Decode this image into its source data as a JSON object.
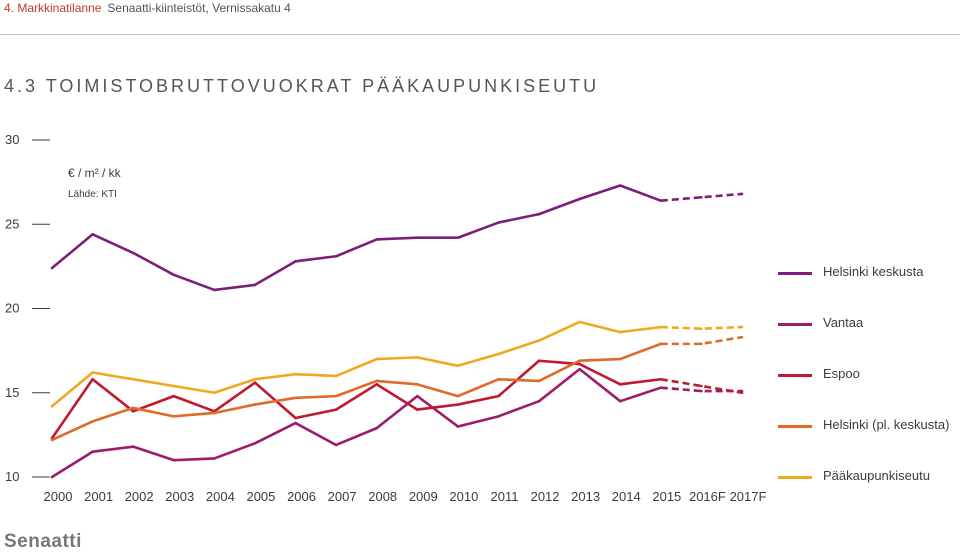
{
  "header": {
    "section": "4. Markkinatilanne",
    "subtitle": "Senaatti-kiinteistöt, Vernissakatu 4"
  },
  "title": "4.3 TOIMISTOBRUTTOVUOKRAT PÄÄKAUPUNKISEUTU",
  "unit": "€ / m² / kk",
  "source": "Lähde: KTI",
  "logo": "Senaatti",
  "chart_data": {
    "type": "line",
    "title": "4.3 TOIMISTOBRUTTOVUOKRAT PÄÄKAUPUNKISEUTU",
    "ylabel": "€ / m² / kk",
    "xlabel": "",
    "ylim": [
      10,
      30
    ],
    "yticks": [
      10,
      15,
      20,
      25,
      30
    ],
    "categories": [
      "2000",
      "2001",
      "2002",
      "2003",
      "2004",
      "2005",
      "2006",
      "2007",
      "2008",
      "2009",
      "2010",
      "2011",
      "2012",
      "2013",
      "2014",
      "2015",
      "2016F",
      "2017F"
    ],
    "forecast_from_index": 15,
    "grid": false,
    "legend_position": "right",
    "series": [
      {
        "name": "Helsinki keskusta",
        "color": "#7b1f7b",
        "values": [
          22.4,
          24.4,
          23.3,
          22.0,
          21.1,
          21.4,
          22.8,
          23.1,
          24.1,
          24.2,
          24.2,
          25.1,
          25.6,
          26.5,
          27.3,
          26.4,
          26.6,
          26.8
        ]
      },
      {
        "name": "Vantaa",
        "color": "#9c1b6a",
        "values": [
          10.0,
          11.5,
          11.8,
          11.0,
          11.1,
          12.0,
          13.2,
          11.9,
          12.9,
          14.8,
          13.0,
          13.6,
          14.5,
          16.4,
          14.5,
          15.3,
          15.1,
          15.1
        ]
      },
      {
        "name": "Espoo",
        "color": "#c0182f",
        "values": [
          12.3,
          15.8,
          13.9,
          14.8,
          13.9,
          15.6,
          13.5,
          14.0,
          15.5,
          14.0,
          14.3,
          14.8,
          16.9,
          16.7,
          15.5,
          15.8,
          15.4,
          15.0
        ]
      },
      {
        "name": "Helsinki (pl. keskusta)",
        "color": "#e06a27",
        "values": [
          12.2,
          13.3,
          14.1,
          13.6,
          13.8,
          14.3,
          14.7,
          14.8,
          15.7,
          15.5,
          14.8,
          15.8,
          15.7,
          16.9,
          17.0,
          17.9,
          17.9,
          18.3
        ]
      },
      {
        "name": "Pääkaupunkiseutu",
        "color": "#f0a81d",
        "values": [
          14.2,
          16.2,
          15.8,
          15.4,
          15.0,
          15.8,
          16.1,
          16.0,
          17.0,
          17.1,
          16.6,
          17.3,
          18.1,
          19.2,
          18.6,
          18.9,
          18.8,
          18.9
        ]
      }
    ]
  }
}
